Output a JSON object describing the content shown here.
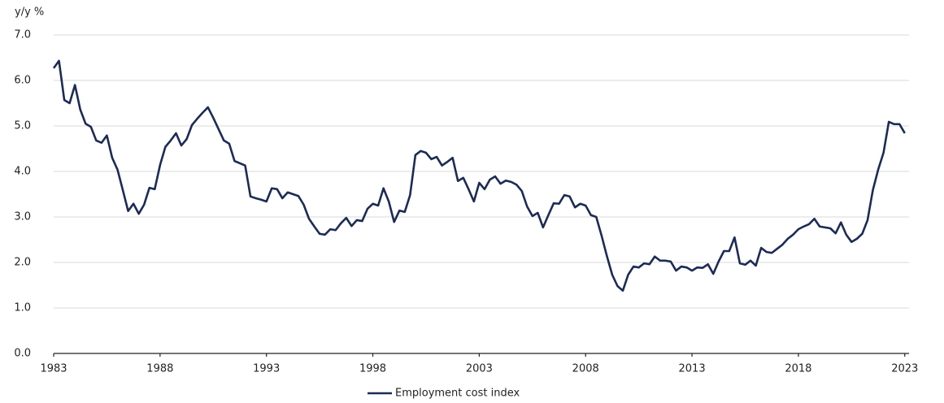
{
  "chart_data": {
    "type": "line",
    "y_axis_label": "y/y %",
    "x": [
      1983,
      1983.25,
      1983.5,
      1983.75,
      1984,
      1984.25,
      1984.5,
      1984.75,
      1985,
      1985.25,
      1985.5,
      1985.75,
      1986,
      1986.25,
      1986.5,
      1986.75,
      1987,
      1987.25,
      1987.5,
      1987.75,
      1988,
      1988.25,
      1988.5,
      1988.75,
      1989,
      1989.25,
      1989.5,
      1989.75,
      1990,
      1990.25,
      1990.5,
      1990.75,
      1991,
      1991.25,
      1991.5,
      1991.75,
      1992,
      1992.25,
      1992.5,
      1992.75,
      1993,
      1993.25,
      1993.5,
      1993.75,
      1994,
      1994.25,
      1994.5,
      1994.75,
      1995,
      1995.25,
      1995.5,
      1995.75,
      1996,
      1996.25,
      1996.5,
      1996.75,
      1997,
      1997.25,
      1997.5,
      1997.75,
      1998,
      1998.25,
      1998.5,
      1998.75,
      1999,
      1999.25,
      1999.5,
      1999.75,
      2000,
      2000.25,
      2000.5,
      2000.75,
      2001,
      2001.25,
      2001.5,
      2001.75,
      2002,
      2002.25,
      2002.5,
      2002.75,
      2003,
      2003.25,
      2003.5,
      2003.75,
      2004,
      2004.25,
      2004.5,
      2004.75,
      2005,
      2005.25,
      2005.5,
      2005.75,
      2006,
      2006.25,
      2006.5,
      2006.75,
      2007,
      2007.25,
      2007.5,
      2007.75,
      2008,
      2008.25,
      2008.5,
      2008.75,
      2009,
      2009.25,
      2009.5,
      2009.75,
      2010,
      2010.25,
      2010.5,
      2010.75,
      2011,
      2011.25,
      2011.5,
      2011.75,
      2012,
      2012.25,
      2012.5,
      2012.75,
      2013,
      2013.25,
      2013.5,
      2013.75,
      2014,
      2014.25,
      2014.5,
      2014.75,
      2015,
      2015.25,
      2015.5,
      2015.75,
      2016,
      2016.25,
      2016.5,
      2016.75,
      2017,
      2017.25,
      2017.5,
      2017.75,
      2018,
      2018.25,
      2018.5,
      2018.75,
      2019,
      2019.25,
      2019.5,
      2019.75,
      2020,
      2020.25,
      2020.5,
      2020.75,
      2021,
      2021.25,
      2021.5,
      2021.75,
      2022,
      2022.25,
      2022.5,
      2022.75,
      2023
    ],
    "series": [
      {
        "name": "Employment cost index",
        "color": "#1c2b55",
        "values": [
          6.27,
          6.43,
          5.57,
          5.5,
          5.9,
          5.36,
          5.05,
          4.98,
          4.68,
          4.63,
          4.79,
          4.3,
          4.04,
          3.59,
          3.13,
          3.29,
          3.07,
          3.27,
          3.64,
          3.61,
          4.14,
          4.54,
          4.68,
          4.84,
          4.57,
          4.71,
          5.02,
          5.16,
          5.29,
          5.41,
          5.18,
          4.93,
          4.68,
          4.61,
          4.23,
          4.18,
          4.13,
          3.45,
          3.41,
          3.38,
          3.34,
          3.63,
          3.61,
          3.41,
          3.54,
          3.5,
          3.46,
          3.27,
          2.96,
          2.79,
          2.63,
          2.61,
          2.73,
          2.71,
          2.86,
          2.98,
          2.8,
          2.93,
          2.91,
          3.18,
          3.29,
          3.25,
          3.63,
          3.34,
          2.89,
          3.14,
          3.11,
          3.48,
          4.36,
          4.45,
          4.41,
          4.27,
          4.32,
          4.13,
          4.21,
          4.3,
          3.79,
          3.86,
          3.61,
          3.34,
          3.75,
          3.61,
          3.82,
          3.89,
          3.73,
          3.8,
          3.77,
          3.71,
          3.57,
          3.23,
          3.02,
          3.09,
          2.77,
          3.04,
          3.3,
          3.29,
          3.48,
          3.45,
          3.21,
          3.29,
          3.25,
          3.04,
          3.0,
          2.59,
          2.14,
          1.73,
          1.48,
          1.38,
          1.73,
          1.91,
          1.89,
          1.98,
          1.96,
          2.13,
          2.04,
          2.04,
          2.02,
          1.82,
          1.91,
          1.89,
          1.82,
          1.89,
          1.88,
          1.96,
          1.75,
          2.02,
          2.25,
          2.25,
          2.55,
          1.98,
          1.95,
          2.04,
          1.93,
          2.32,
          2.23,
          2.21,
          2.3,
          2.39,
          2.52,
          2.61,
          2.73,
          2.79,
          2.84,
          2.96,
          2.79,
          2.77,
          2.75,
          2.64,
          2.88,
          2.61,
          2.45,
          2.52,
          2.63,
          2.93,
          3.59,
          4.04,
          4.41,
          5.09,
          5.04,
          5.04,
          4.84
        ]
      }
    ],
    "xlim": [
      1983,
      2023.2
    ],
    "xticks": [
      1983,
      1988,
      1993,
      1998,
      2003,
      2008,
      2013,
      2018,
      2023
    ],
    "ylim": [
      0,
      7
    ],
    "yticks": [
      {
        "value": 0,
        "label": "0.0"
      },
      {
        "value": 1,
        "label": "1.0"
      },
      {
        "value": 2,
        "label": "2.0"
      },
      {
        "value": 3,
        "label": "3.0"
      },
      {
        "value": 4,
        "label": "4.0"
      },
      {
        "value": 5,
        "label": "5.0"
      },
      {
        "value": 6,
        "label": "6.0"
      },
      {
        "value": 7,
        "label": "7.0"
      }
    ],
    "grid": true,
    "legend": "bottom"
  }
}
